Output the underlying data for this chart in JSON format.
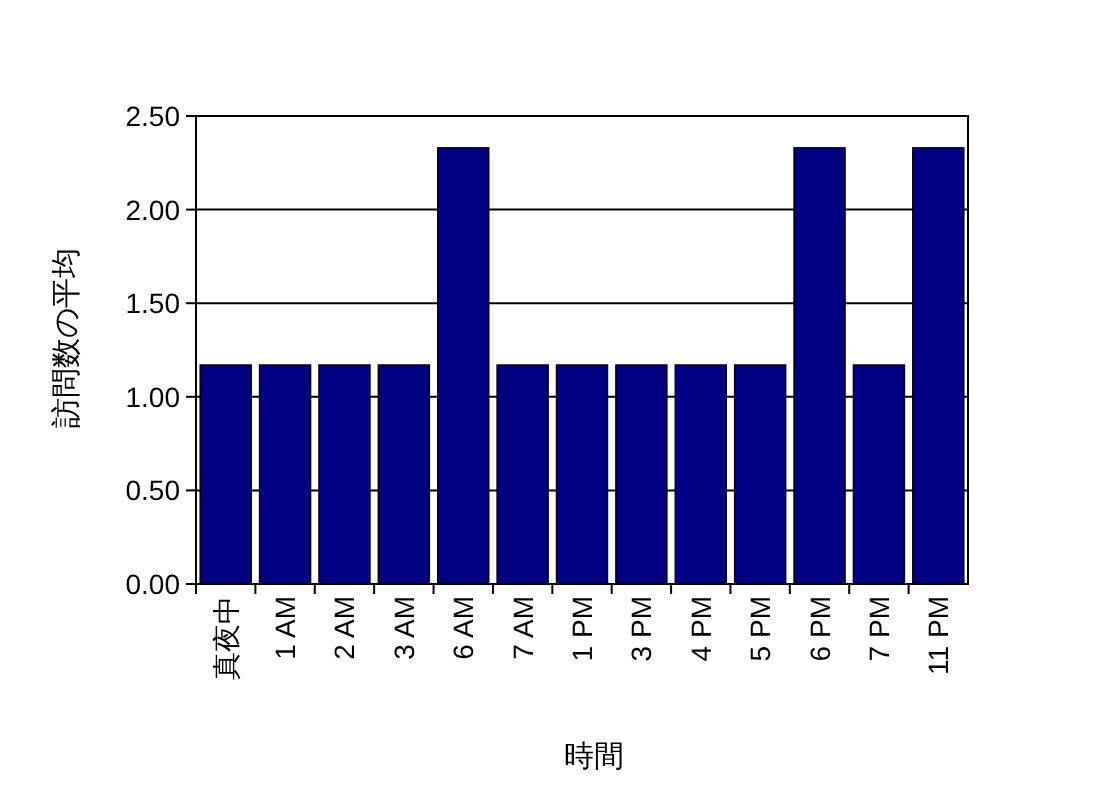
{
  "chart_data": {
    "type": "bar",
    "xlabel": "時間",
    "ylabel": "訪問数の平均",
    "categories": [
      "真夜中",
      "1 AM",
      "2 AM",
      "3 AM",
      "6 AM",
      "7 AM",
      "1 PM",
      "3 PM",
      "4 PM",
      "5 PM",
      "6 PM",
      "7 PM",
      "11 PM"
    ],
    "values": [
      1.17,
      1.17,
      1.17,
      1.17,
      2.33,
      1.17,
      1.17,
      1.17,
      1.17,
      1.17,
      2.33,
      1.17,
      2.33
    ],
    "color": "#000080",
    "ylim": [
      0,
      2.5
    ],
    "yticks": [
      {
        "value": 0,
        "label": "0.00"
      },
      {
        "value": 0.5,
        "label": "0.50"
      },
      {
        "value": 1,
        "label": "1.00"
      },
      {
        "value": 1.5,
        "label": "1.50"
      },
      {
        "value": 2,
        "label": "2.00"
      },
      {
        "value": 2.5,
        "label": "2.50"
      }
    ],
    "grid": "y"
  }
}
